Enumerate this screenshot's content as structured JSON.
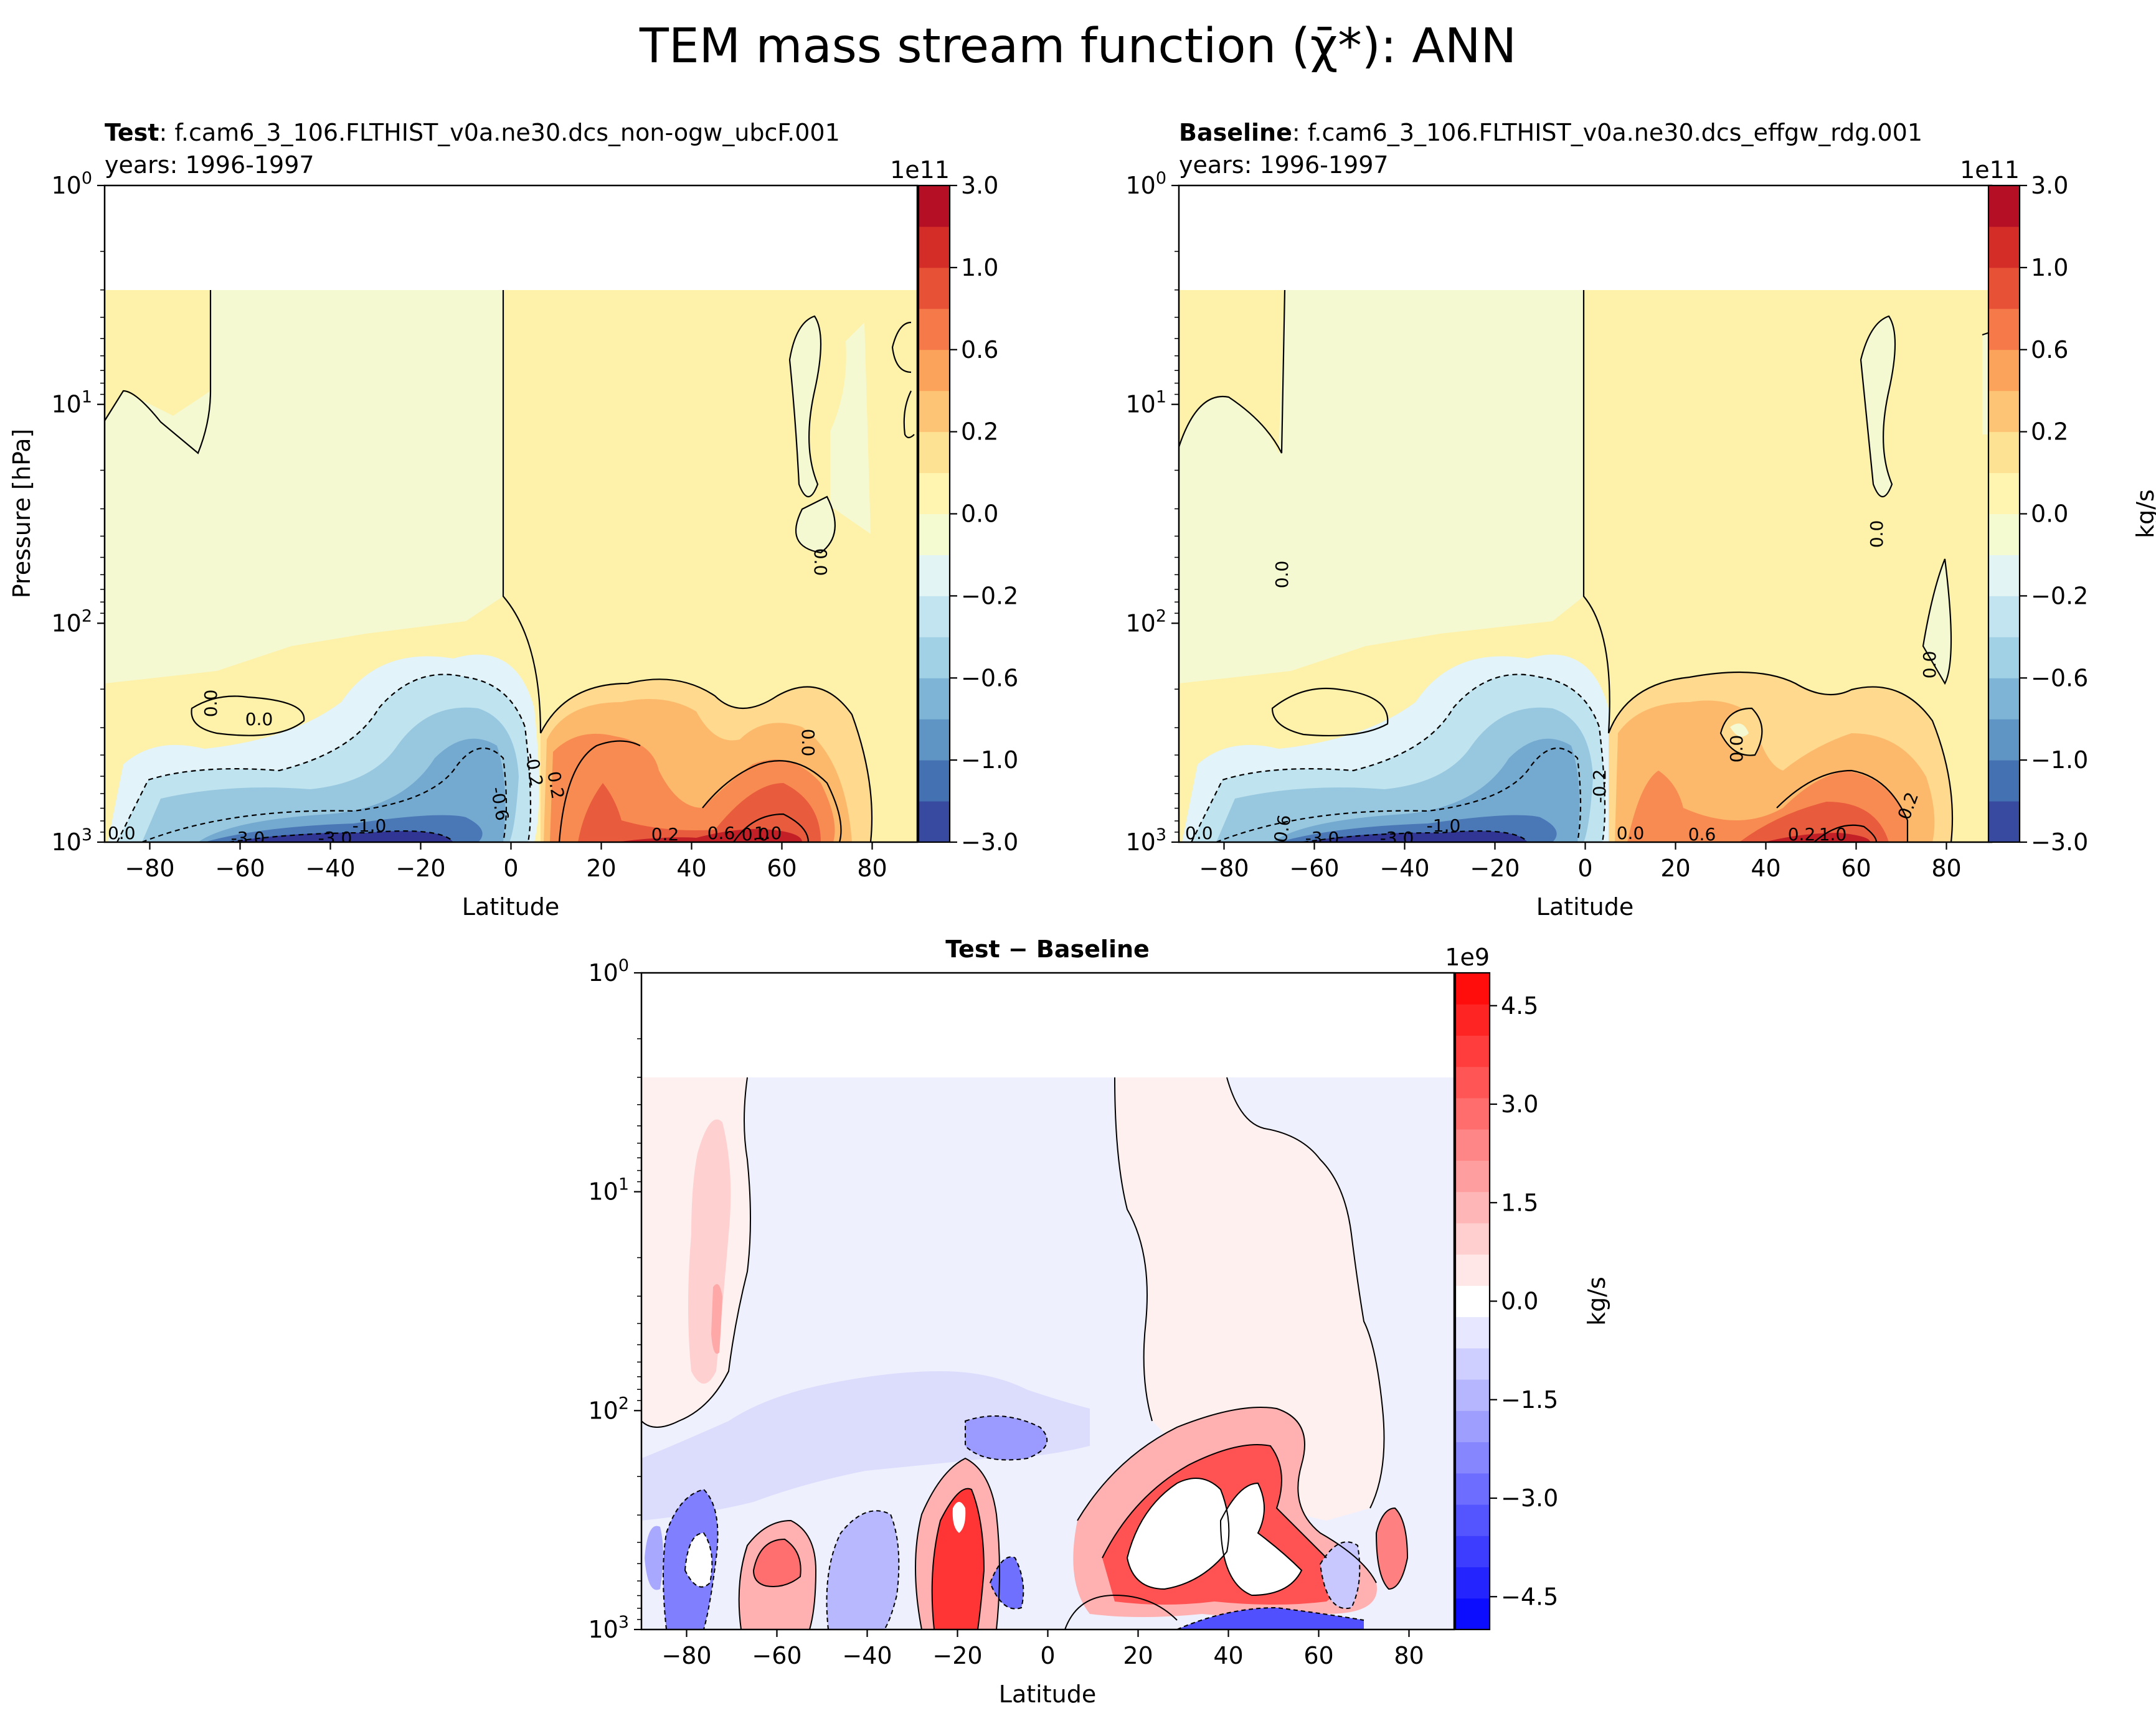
{
  "title": "TEM mass stream function ($\\bar{\\chi}^{*}$): ANN",
  "title_display": "TEM mass stream function (χ̄*): ANN",
  "colors": {
    "frame": "#000000",
    "contour": "#000000"
  },
  "chart_data": [
    {
      "type": "heatmap",
      "panel": "test",
      "title_bold": "Test",
      "title_rest": ": f.cam6_3_106.FLTHIST_v0a.ne30.dcs_non-ogw_ubcF.001",
      "subtitle": "years: 1996-1997",
      "xlabel": "Latitude",
      "ylabel": "Pressure [hPa]",
      "x_ticks": [
        "−80",
        "−60",
        "−40",
        "−20",
        "0",
        "20",
        "40",
        "60",
        "80"
      ],
      "x_tick_values": [
        -80,
        -60,
        -40,
        -20,
        0,
        20,
        40,
        60,
        80
      ],
      "xlim": [
        -90,
        90
      ],
      "y_scale": "log",
      "y_inverted": true,
      "ylim": [
        1000,
        1
      ],
      "y_ticks": [
        {
          "base": "10",
          "exp": "0",
          "value": 1
        },
        {
          "base": "10",
          "exp": "1",
          "value": 10
        },
        {
          "base": "10",
          "exp": "2",
          "value": 100
        },
        {
          "base": "10",
          "exp": "3",
          "value": 1000
        }
      ],
      "data_top_hPa": 3,
      "colormap": "RdYlBu_r",
      "colorbar_multiplier": "1e11",
      "colorbar_label": "",
      "colorbar_ticks": [
        "3.0",
        "1.0",
        "0.6",
        "0.2",
        "0.0",
        "−0.2",
        "−0.6",
        "−1.0",
        "−3.0"
      ],
      "levels": [
        -3.0,
        -1.4,
        -1.0,
        -0.8,
        -0.6,
        -0.4,
        -0.2,
        -0.1,
        0.0,
        0.1,
        0.2,
        0.4,
        0.6,
        0.8,
        1.0,
        1.4,
        3.0
      ],
      "contour_labels": [
        "0.0",
        "0.0",
        "0.0",
        "0.0",
        "0.0",
        "-0.2",
        "-0.6",
        "-1.0",
        "-3.0",
        "-3.0",
        "0.2",
        "0.6",
        "1.0",
        "0.2",
        "0.0"
      ]
    },
    {
      "type": "heatmap",
      "panel": "baseline",
      "title_bold": "Baseline",
      "title_rest": ": f.cam6_3_106.FLTHIST_v0a.ne30.dcs_effgw_rdg.001",
      "subtitle": "years: 1996-1997",
      "xlabel": "Latitude",
      "x_ticks": [
        "−80",
        "−60",
        "−40",
        "−20",
        "0",
        "20",
        "40",
        "60",
        "80"
      ],
      "x_tick_values": [
        -80,
        -60,
        -40,
        -20,
        0,
        20,
        40,
        60,
        80
      ],
      "xlim": [
        -90,
        90
      ],
      "y_scale": "log",
      "y_inverted": true,
      "ylim": [
        1000,
        1
      ],
      "y_ticks": [
        {
          "base": "10",
          "exp": "0",
          "value": 1
        },
        {
          "base": "10",
          "exp": "1",
          "value": 10
        },
        {
          "base": "10",
          "exp": "2",
          "value": 100
        },
        {
          "base": "10",
          "exp": "3",
          "value": 1000
        }
      ],
      "data_top_hPa": 3,
      "colormap": "RdYlBu_r",
      "colorbar_multiplier": "1e11",
      "colorbar_label": "kg/s",
      "colorbar_ticks": [
        "3.0",
        "1.0",
        "0.6",
        "0.2",
        "0.0",
        "−0.2",
        "−0.6",
        "−1.0",
        "−3.0"
      ],
      "levels": [
        -3.0,
        -1.4,
        -1.0,
        -0.8,
        -0.6,
        -0.4,
        -0.2,
        -0.1,
        0.0,
        0.1,
        0.2,
        0.4,
        0.6,
        0.8,
        1.0,
        1.4,
        3.0
      ],
      "contour_labels": [
        "0.0",
        "0.0",
        "0.0",
        "0.0",
        "0.0",
        "-0.2",
        "-0.6",
        "-1.0",
        "-3.0",
        "-3.0",
        "0.2",
        "0.6",
        "1.0",
        "0.2",
        "0.0"
      ]
    },
    {
      "type": "heatmap",
      "panel": "diff",
      "title_bold": "Test − Baseline",
      "xlabel": "Latitude",
      "x_ticks": [
        "−80",
        "−60",
        "−40",
        "−20",
        "0",
        "20",
        "40",
        "60",
        "80"
      ],
      "x_tick_values": [
        -80,
        -60,
        -40,
        -20,
        0,
        20,
        40,
        60,
        80
      ],
      "xlim": [
        -90,
        90
      ],
      "y_scale": "log",
      "y_inverted": true,
      "ylim": [
        1000,
        1
      ],
      "y_ticks": [
        {
          "base": "10",
          "exp": "0",
          "value": 1
        },
        {
          "base": "10",
          "exp": "1",
          "value": 10
        },
        {
          "base": "10",
          "exp": "2",
          "value": 100
        },
        {
          "base": "10",
          "exp": "3",
          "value": 1000
        }
      ],
      "data_top_hPa": 3,
      "colormap": "bwr",
      "colorbar_multiplier": "1e9",
      "colorbar_label": "kg/s",
      "colorbar_ticks": [
        "4.5",
        "3.0",
        "1.5",
        "0.0",
        "−1.5",
        "−3.0",
        "−4.5"
      ],
      "colorbar_tick_values": [
        4.5,
        3.0,
        1.5,
        0.0,
        -1.5,
        -3.0,
        -4.5
      ],
      "vlim": [
        -5.0,
        5.0
      ],
      "n_levels": 21
    }
  ]
}
